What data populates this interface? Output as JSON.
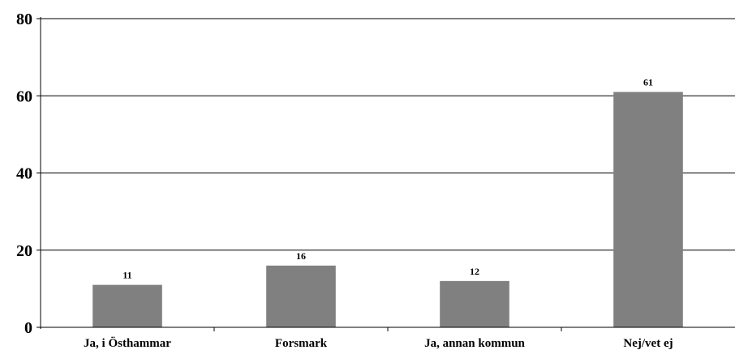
{
  "chart_data": {
    "type": "bar",
    "title": "",
    "xlabel": "",
    "ylabel": "",
    "categories": [
      "Ja, i Östhammar",
      "Forsmark",
      "Ja, annan kommun",
      "Nej/vet ej"
    ],
    "values": [
      11,
      16,
      12,
      61
    ],
    "data_labels": [
      "11",
      "16",
      "12",
      "61"
    ],
    "ylim": [
      0,
      80
    ],
    "yticks": [
      0,
      20,
      40,
      60,
      80
    ],
    "grid": true,
    "legend": "none",
    "bar_color": "#808080"
  }
}
